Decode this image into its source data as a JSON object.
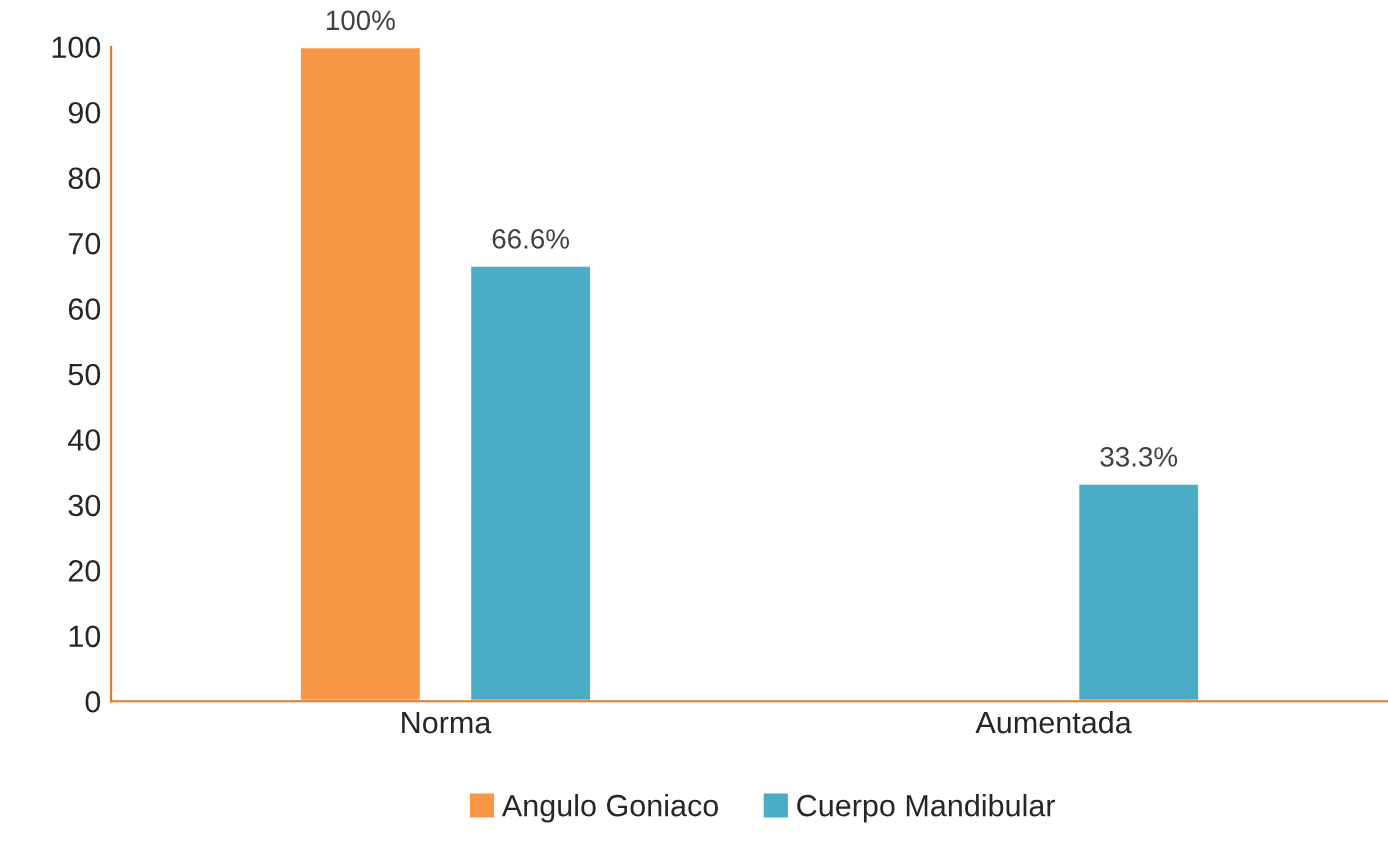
{
  "chart_data": {
    "type": "bar",
    "categories": [
      "Norma",
      "Aumentada"
    ],
    "series": [
      {
        "name": "Angulo Goniaco",
        "color": "#f79646",
        "values": [
          100,
          null
        ],
        "value_labels": [
          "100%",
          null
        ]
      },
      {
        "name": "Cuerpo Mandibular",
        "color": "#4bacc6",
        "values": [
          66.6,
          33.3
        ],
        "value_labels": [
          "66.6%",
          "33.3%"
        ]
      }
    ],
    "ylim": [
      0,
      100
    ],
    "yticks": [
      0,
      10,
      20,
      30,
      40,
      50,
      60,
      70,
      80,
      90,
      100
    ],
    "grid": false,
    "legend": "bottom"
  }
}
